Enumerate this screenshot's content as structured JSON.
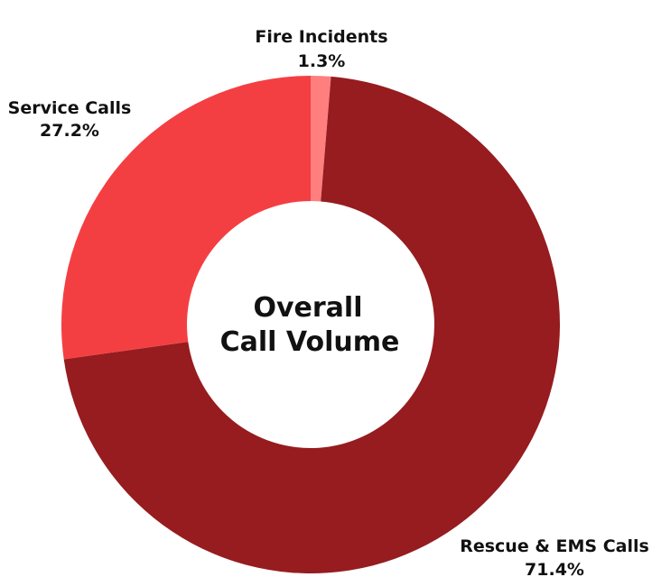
{
  "chart_data": {
    "type": "pie",
    "subtype": "donut",
    "center_title": [
      "Overall",
      "Call Volume"
    ],
    "slices": [
      {
        "label": "Fire Incidents",
        "value": 1.3,
        "value_label": "1.3%",
        "color": "#ff7f7f"
      },
      {
        "label": "Rescue & EMS Calls",
        "value": 71.4,
        "value_label": "71.4%",
        "color": "#961c1f"
      },
      {
        "label": "Service Calls",
        "value": 27.2,
        "value_label": "27.2%",
        "color": "#f43f42"
      }
    ],
    "legend": "none"
  }
}
